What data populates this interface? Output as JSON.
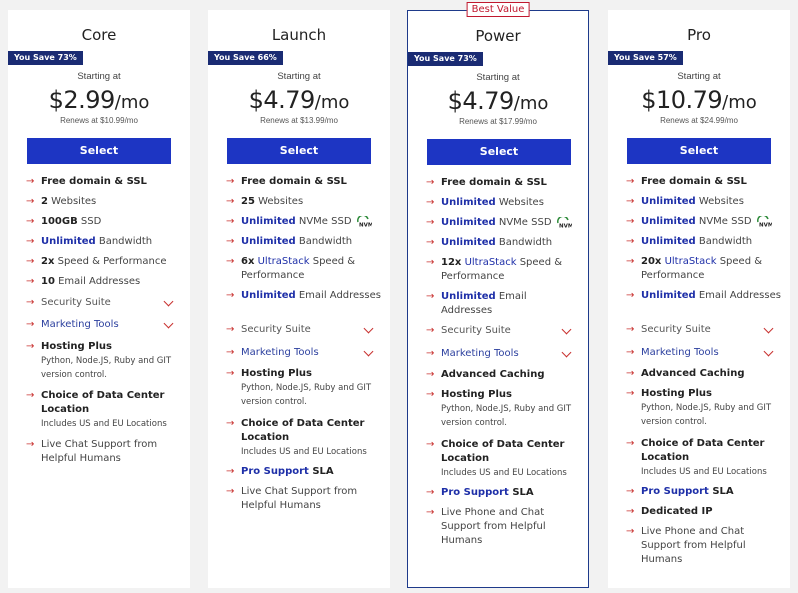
{
  "plans": [
    {
      "name": "Core",
      "save": "You Save 73%",
      "starting": "Starting at",
      "price": "$2.99",
      "per": "/mo",
      "renews": "Renews at $10.99/mo",
      "select": "Select",
      "features": {
        "f1": {
          "a": "Free domain & SSL"
        },
        "f2": {
          "a": "2",
          "b": " Websites"
        },
        "f3": {
          "a": "100GB",
          "b": " SSD"
        },
        "f4": {
          "a": "Unlimited",
          "b": " Bandwidth"
        },
        "f5": {
          "a": "2x",
          "b": " Speed & Performance"
        },
        "f6": {
          "a": "10",
          "b": " Email Addresses"
        },
        "f7": {
          "a": "Security Suite"
        },
        "f8": {
          "a": "Marketing Tools"
        },
        "f9": {
          "a": "Hosting Plus",
          "sub": "Python,  Node.JS,  Ruby and GIT version control."
        },
        "f10": {
          "a": "Choice of Data Center Location",
          "sub": "Includes US and EU Locations"
        },
        "f11": {
          "a": "Live Chat Support from Helpful Humans"
        }
      }
    },
    {
      "name": "Launch",
      "save": "You Save 66%",
      "starting": "Starting at",
      "price": "$4.79",
      "per": "/mo",
      "renews": "Renews at $13.99/mo",
      "select": "Select",
      "features": {
        "f1": {
          "a": "Free domain & SSL"
        },
        "f2": {
          "a": "25",
          "b": " Websites"
        },
        "f3": {
          "a": "Unlimited",
          "b": " NVMe SSD"
        },
        "f4": {
          "a": "Unlimited",
          "b": " Bandwidth"
        },
        "f5": {
          "a": "6x",
          "b1": " ",
          "c": "UltraStack",
          "b": " Speed & Performance"
        },
        "f6": {
          "a": "Unlimited",
          "b": " Email Addresses"
        },
        "f7": {
          "a": "Security Suite"
        },
        "f8": {
          "a": "Marketing Tools"
        },
        "f9": {
          "a": "Hosting Plus",
          "sub": "Python,  Node.JS,  Ruby and GIT version control."
        },
        "f10": {
          "a": "Choice of Data Center Location",
          "sub": "Includes US and EU Locations"
        },
        "f11": {
          "a": "Pro Support",
          "b": " SLA"
        },
        "f12": {
          "a": "Live Chat Support from Helpful Humans"
        }
      }
    },
    {
      "name": "Power",
      "badge": "Best Value",
      "save": "You Save 73%",
      "starting": "Starting at",
      "price": "$4.79",
      "per": "/mo",
      "renews": "Renews at $17.99/mo",
      "select": "Select",
      "features": {
        "f1": {
          "a": "Free domain & SSL"
        },
        "f2": {
          "a": "Unlimited",
          "b": " Websites"
        },
        "f3": {
          "a": "Unlimited",
          "b": " NVMe SSD"
        },
        "f4": {
          "a": "Unlimited",
          "b": " Bandwidth"
        },
        "f5": {
          "a": "12x",
          "b1": " ",
          "c": "UltraStack",
          "b": " Speed & Performance"
        },
        "f6": {
          "a": "Unlimited",
          "b": " Email Addresses"
        },
        "f7": {
          "a": "Security Suite"
        },
        "f8": {
          "a": "Marketing Tools"
        },
        "f9": {
          "a": "Advanced Caching"
        },
        "f10": {
          "a": "Hosting Plus",
          "sub": "Python,  Node.JS,  Ruby and GIT version control."
        },
        "f11": {
          "a": "Choice of Data Center Location",
          "sub": "Includes US and EU Locations"
        },
        "f12": {
          "a": "Pro Support",
          "b": " SLA"
        },
        "f13": {
          "a": "Live Phone and Chat Support from Helpful Humans"
        }
      }
    },
    {
      "name": "Pro",
      "save": "You Save 57%",
      "starting": "Starting at",
      "price": "$10.79",
      "per": "/mo",
      "renews": "Renews at $24.99/mo",
      "select": "Select",
      "features": {
        "f1": {
          "a": "Free domain & SSL"
        },
        "f2": {
          "a": "Unlimited",
          "b": " Websites"
        },
        "f3": {
          "a": "Unlimited",
          "b": " NVMe SSD"
        },
        "f4": {
          "a": "Unlimited",
          "b": " Bandwidth"
        },
        "f5": {
          "a": "20x",
          "b1": " ",
          "c": "UltraStack",
          "b": " Speed & Performance"
        },
        "f6": {
          "a": "Unlimited",
          "b": " Email Addresses"
        },
        "f7": {
          "a": "Security Suite"
        },
        "f8": {
          "a": "Marketing Tools"
        },
        "f9": {
          "a": "Advanced Caching"
        },
        "f10": {
          "a": "Hosting Plus",
          "sub": "Python,  Node.JS,  Ruby and GIT version control."
        },
        "f11": {
          "a": "Choice of Data Center Location",
          "sub": "Includes US and EU Locations"
        },
        "f12": {
          "a": "Pro Support",
          "b": " SLA"
        },
        "f13": {
          "a": "Dedicated IP"
        },
        "f14": {
          "a": "Live Phone and Chat Support from Helpful Humans"
        }
      }
    }
  ],
  "icons": {
    "arrow": "arrow-right-icon",
    "chevron": "chevron-down-icon",
    "nvme": "nvme-badge-icon"
  },
  "colors": {
    "accent_blue": "#1d35c3",
    "badge_navy": "#1a2b73",
    "arrow_red": "#c8312f"
  }
}
